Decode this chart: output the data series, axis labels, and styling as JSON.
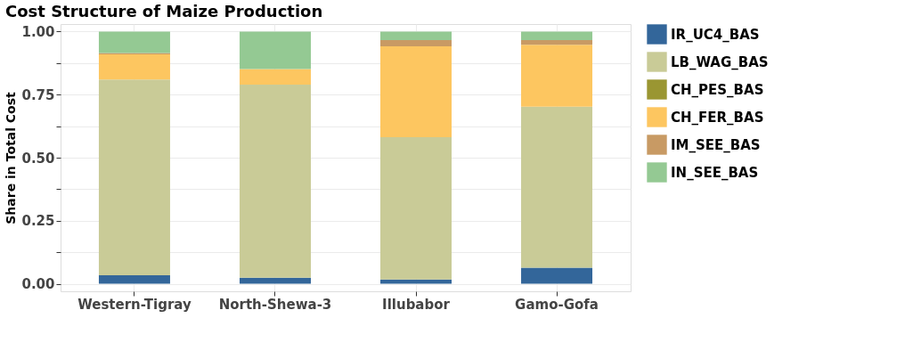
{
  "chart_data": {
    "type": "bar",
    "title": "Cost Structure of Maize Production",
    "ylabel": "Share in Total Cost",
    "categories": [
      "Western-Tigray",
      "North-Shewa-3",
      "Illubabor",
      "Gamo-Gofa"
    ],
    "stacked": true,
    "series": [
      {
        "name": "IR_UC4_BAS",
        "color": "#33669a",
        "values": [
          0.034,
          0.024,
          0.017,
          0.064
        ]
      },
      {
        "name": "LB_WAG_BAS",
        "color": "#c9cb97",
        "values": [
          0.776,
          0.766,
          0.564,
          0.638
        ]
      },
      {
        "name": "CH_PES_BAS",
        "color": "#9a9632",
        "values": [
          0,
          0,
          0,
          0
        ]
      },
      {
        "name": "CH_FER_BAS",
        "color": "#fdc660",
        "values": [
          0.1,
          0.062,
          0.361,
          0.246
        ]
      },
      {
        "name": "IM_SEE_BAS",
        "color": "#c89a64",
        "values": [
          0.005,
          0,
          0.024,
          0.018
        ]
      },
      {
        "name": "IN_SEE_BAS",
        "color": "#94c993",
        "values": [
          0.085,
          0.148,
          0.034,
          0.034
        ]
      }
    ],
    "ylim": [
      -0.03,
      1.03
    ],
    "yticks": [
      {
        "value": 0,
        "label": "0.00"
      },
      {
        "value": 0.125,
        "label": null
      },
      {
        "value": 0.25,
        "label": "0.25"
      },
      {
        "value": 0.375,
        "label": null
      },
      {
        "value": 0.5,
        "label": "0.50"
      },
      {
        "value": 0.625,
        "label": null
      },
      {
        "value": 0.75,
        "label": "0.75"
      },
      {
        "value": 0.875,
        "label": null
      },
      {
        "value": 1,
        "label": "1.00"
      }
    ],
    "grid": true,
    "legend": "right"
  }
}
